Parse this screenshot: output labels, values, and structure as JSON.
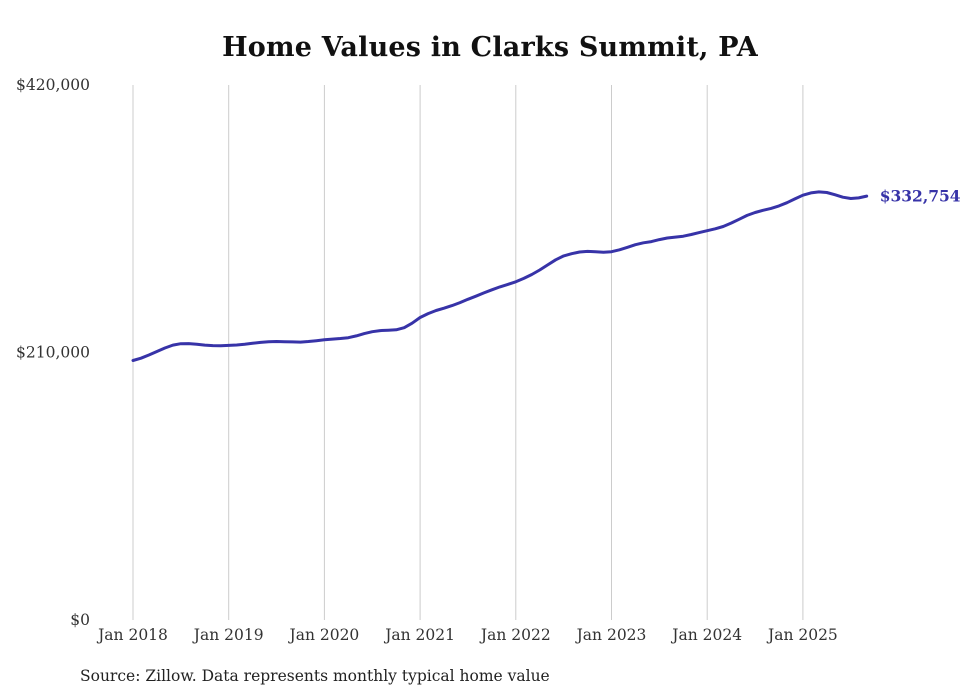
{
  "chart_data": {
    "type": "line",
    "title": "Home Values in Clarks Summit, PA",
    "x_frequency": "monthly",
    "x_start": "Jan 2018",
    "x_end": "Sep 2025",
    "x_tick_labels": [
      "Jan 2018",
      "Jan 2019",
      "Jan 2020",
      "Jan 2021",
      "Jan 2022",
      "Jan 2023",
      "Jan 2024",
      "Jan 2025"
    ],
    "y_ticks": [
      {
        "label": "$0",
        "value": 0
      },
      {
        "label": "$210,000",
        "value": 210000
      },
      {
        "label": "$420,000",
        "value": 420000
      }
    ],
    "ylim": [
      0,
      420000
    ],
    "grid": "vertical-only",
    "legend": "none",
    "end_label": "$332,754",
    "end_value": 332754,
    "series": [
      {
        "name": "Typical home value",
        "values": [
          203700,
          205500,
          208000,
          210800,
          213500,
          215800,
          216900,
          217000,
          216500,
          215800,
          215400,
          215300,
          215600,
          215900,
          216400,
          217200,
          217900,
          218400,
          218600,
          218500,
          218300,
          218200,
          218600,
          219300,
          220000,
          220500,
          221000,
          221600,
          223000,
          224800,
          226300,
          227200,
          227500,
          227800,
          229500,
          233000,
          237500,
          240500,
          243000,
          244800,
          246800,
          249200,
          251800,
          254200,
          256800,
          259200,
          261500,
          263500,
          265500,
          268200,
          271200,
          274800,
          278800,
          282800,
          285800,
          287600,
          288900,
          289400,
          289100,
          288700,
          289100,
          290600,
          292600,
          294600,
          296100,
          297100,
          298600,
          299900,
          300600,
          301300,
          302600,
          304100,
          305600,
          307100,
          308900,
          311600,
          314600,
          317600,
          319900,
          321600,
          323100,
          325100,
          327600,
          330600,
          333500,
          335300,
          336100,
          335600,
          333900,
          331900,
          330900,
          331400,
          332754
        ]
      }
    ]
  },
  "source_note": "Source: Zillow. Data represents monthly typical home value",
  "colors": {
    "line": "#3733a8",
    "grid": "#cccccc",
    "axis_text": "#333333",
    "title_text": "#111111",
    "end_label_text": "#3733a8"
  }
}
